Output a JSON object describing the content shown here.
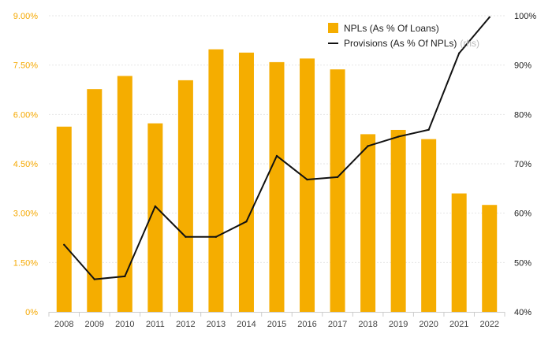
{
  "chart_data": {
    "type": "bar+line",
    "categories": [
      "2008",
      "2009",
      "2010",
      "2011",
      "2012",
      "2013",
      "2014",
      "2015",
      "2016",
      "2017",
      "2018",
      "2019",
      "2020",
      "2021",
      "2022"
    ],
    "series": [
      {
        "name": "NPLs (As % Of Loans)",
        "type": "bar",
        "axis": "left",
        "color": "#f5ad00",
        "values": [
          5.63,
          6.77,
          7.17,
          5.73,
          7.04,
          7.98,
          7.88,
          7.59,
          7.7,
          7.37,
          5.4,
          5.53,
          5.25,
          3.6,
          3.25
        ]
      },
      {
        "name": "Provisions (As % Of NPLs)",
        "type": "line",
        "axis": "right",
        "color": "#111111",
        "values": [
          53.6,
          46.6,
          47.2,
          61.4,
          55.2,
          55.2,
          58.3,
          71.6,
          66.8,
          67.3,
          73.6,
          75.5,
          76.9,
          92.4,
          99.7
        ]
      }
    ],
    "left_axis": {
      "ticks": [
        "9.00%",
        "7.50%",
        "6.00%",
        "4.50%",
        "3.00%",
        "1.50%",
        "0%"
      ],
      "range": [
        0,
        9
      ],
      "color": "#f5a800"
    },
    "right_axis": {
      "ticks": [
        "100%",
        "90%",
        "80%",
        "70%",
        "60%",
        "50%",
        "40%"
      ],
      "range": [
        40,
        100
      ]
    },
    "legend": {
      "placement": "top-right",
      "items": [
        {
          "label": "NPLs (As % Of Loans)",
          "suffix": ""
        },
        {
          "label": "Provisions (As % Of NPLs)",
          "suffix": "(rhs)"
        }
      ]
    },
    "grid": true,
    "title": "",
    "xlabel": "",
    "ylabel": ""
  }
}
